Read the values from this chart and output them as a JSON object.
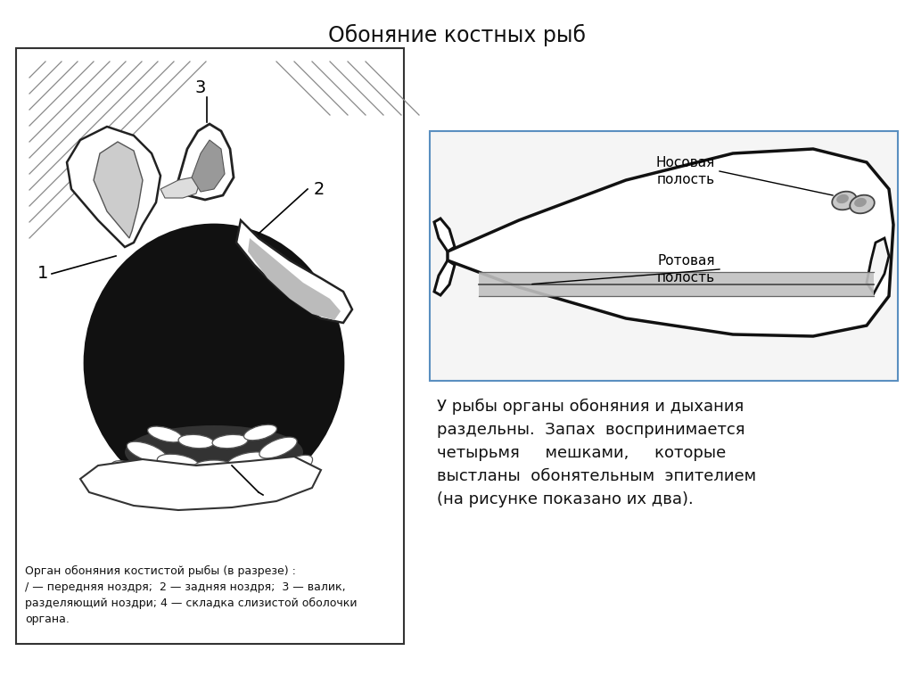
{
  "title": "Обоняние костных рыб",
  "title_fontsize": 17,
  "background_color": "#ffffff",
  "caption_left": "Орган обоняния костистой рыбы (в разрезе) :\n/ — передняя ноздря;  2 — задняя ноздря;  3 — валик,\nразделяющий ноздри; 4 — складка слизистой оболочки\nоргана.",
  "caption_fontsize": 9,
  "text_block_line1": "У рыбы органы обоняния и дыхания",
  "text_block_line2": "раздельны.  Запах  воспринимается",
  "text_block_line3": "четырьмя     мешками,     которые",
  "text_block_line4": "выстланы  обонятельным  эпителием",
  "text_block_line5": "(на рисунке показано их два).",
  "text_fontsize": 13,
  "nosovaya": "Носовая\nполость",
  "rotovaya": "Ротовая\nполость",
  "annotation_fontsize": 11
}
